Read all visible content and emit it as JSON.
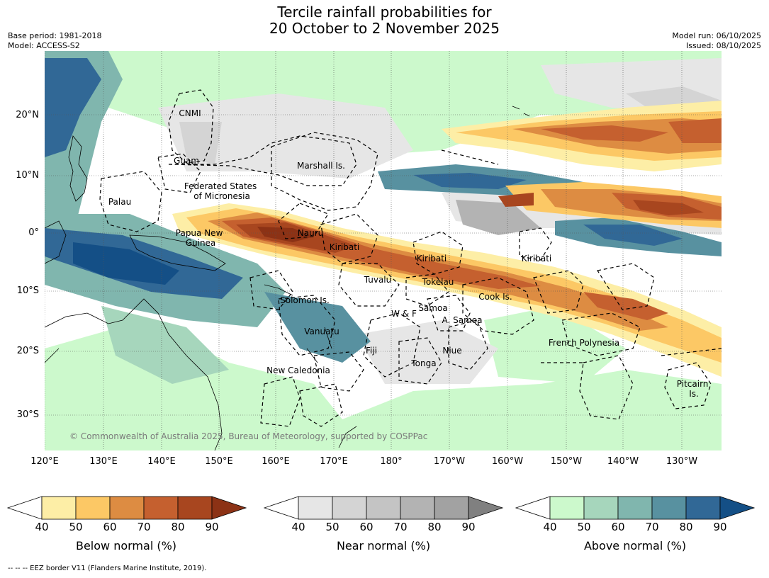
{
  "title_line1": "Tercile rainfall probabilities for",
  "title_line2": "20 October to 2 November 2025",
  "base_period": "Base period: 1981-2018",
  "model": "Model: ACCESS-S2",
  "model_run": "Model run: 06/10/2025",
  "issued": "Issued: 08/10/2025",
  "copyright": "© Commonwealth of Australia 2025, Bureau of Meteorology, supported by COSPPac",
  "footnote": "--  --  -- EEZ border V11 (Flanders Marine Institute, 2019).",
  "lat_labels": [
    "20°N",
    "10°N",
    "0°",
    "10°S",
    "20°S",
    "30°S"
  ],
  "lon_labels": [
    "120°E",
    "130°E",
    "140°E",
    "150°E",
    "160°E",
    "170°E",
    "180°",
    "170°W",
    "160°W",
    "150°W",
    "140°W",
    "130°W"
  ],
  "regions": [
    "CNMI",
    "Guam",
    "Marshall Is.",
    "Federated States\nof Micronesia",
    "Palau",
    "Papua New\nGuinea",
    "Nauru",
    "Kiribati",
    "Kiribati",
    "Kiribati",
    "Tuvalu",
    "Tokelau",
    "Solomon Is.",
    "Cook Is.",
    "Samoa",
    "W & F",
    "A. Samoa",
    "Vanuatu",
    "Fiji",
    "Niue",
    "French Polynesia",
    "Tonga",
    "New Caledonia",
    "Pitcairn\nIs."
  ],
  "colorbars": [
    {
      "title": "Below normal (%)",
      "ticks": [
        "40",
        "50",
        "60",
        "70",
        "80",
        "90"
      ],
      "colors": [
        "#ffffff",
        "#fdeea6",
        "#fcc865",
        "#dd8c42",
        "#c5602f",
        "#a8461f",
        "#8c3215"
      ]
    },
    {
      "title": "Near normal (%)",
      "ticks": [
        "40",
        "50",
        "60",
        "70",
        "80",
        "90"
      ],
      "colors": [
        "#ffffff",
        "#e6e6e6",
        "#d4d4d4",
        "#c4c4c4",
        "#b3b3b3",
        "#a2a2a2",
        "#808080"
      ]
    },
    {
      "title": "Above normal (%)",
      "ticks": [
        "40",
        "50",
        "60",
        "70",
        "80",
        "90"
      ],
      "colors": [
        "#ffffff",
        "#ccf9cc",
        "#a6d6bc",
        "#80b6ae",
        "#5891a0",
        "#316896",
        "#144f86"
      ]
    }
  ]
}
